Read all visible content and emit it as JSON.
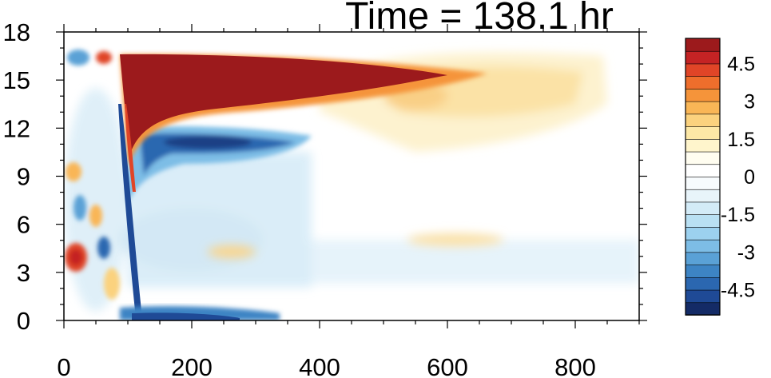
{
  "chart_data": {
    "type": "heatmap",
    "title": "Time = 138.1 hr",
    "xlabel": "",
    "ylabel": "",
    "xlim": [
      0,
      900
    ],
    "ylim": [
      0,
      18
    ],
    "x_ticks": [
      "0",
      "200",
      "400",
      "600",
      "800"
    ],
    "y_ticks": [
      "0",
      "3",
      "6",
      "9",
      "12",
      "15",
      "18"
    ],
    "colorbar": {
      "levels": [
        -5.5,
        -5,
        -4.5,
        -4,
        -3.5,
        -3,
        -2.5,
        -2,
        -1.5,
        -1,
        -0.5,
        0,
        0.5,
        1,
        1.5,
        2,
        2.5,
        3,
        3.5,
        4,
        4.5,
        5,
        5.5
      ],
      "labels": [
        "4.5",
        "3",
        "1.5",
        "0",
        "-1.5",
        "-3",
        "-4.5"
      ],
      "colors": [
        "#142b66",
        "#1f4a96",
        "#2b67b0",
        "#3d84c4",
        "#5aa1d6",
        "#7dbde6",
        "#9cd1ef",
        "#b9e0f3",
        "#d3ebf7",
        "#e8f4fa",
        "#f7fbfd",
        "#ffffff",
        "#fffdf0",
        "#fff5cc",
        "#fde8a6",
        "#fbd27e",
        "#f9b656",
        "#f5943a",
        "#ee6e2c",
        "#e04527",
        "#c42324",
        "#9c1a1c"
      ]
    },
    "field_features": [
      {
        "name": "upper warm tongue",
        "x": [
          85,
          650
        ],
        "y": [
          12.2,
          16.6
        ],
        "value": 5.5
      },
      {
        "name": "weak warm extension",
        "x": [
          400,
          760
        ],
        "y": [
          10.5,
          16.8
        ],
        "value": 1.2
      },
      {
        "name": "cold band",
        "x": [
          100,
          380
        ],
        "y": [
          9.5,
          12.5
        ],
        "value": -4.5
      },
      {
        "name": "surface cold layer",
        "x": [
          80,
          350
        ],
        "y": [
          0,
          0.8
        ],
        "value": -4
      },
      {
        "name": "near-axis warm blob",
        "x": [
          0,
          30
        ],
        "y": [
          3,
          4.5
        ],
        "value": 4
      }
    ]
  }
}
